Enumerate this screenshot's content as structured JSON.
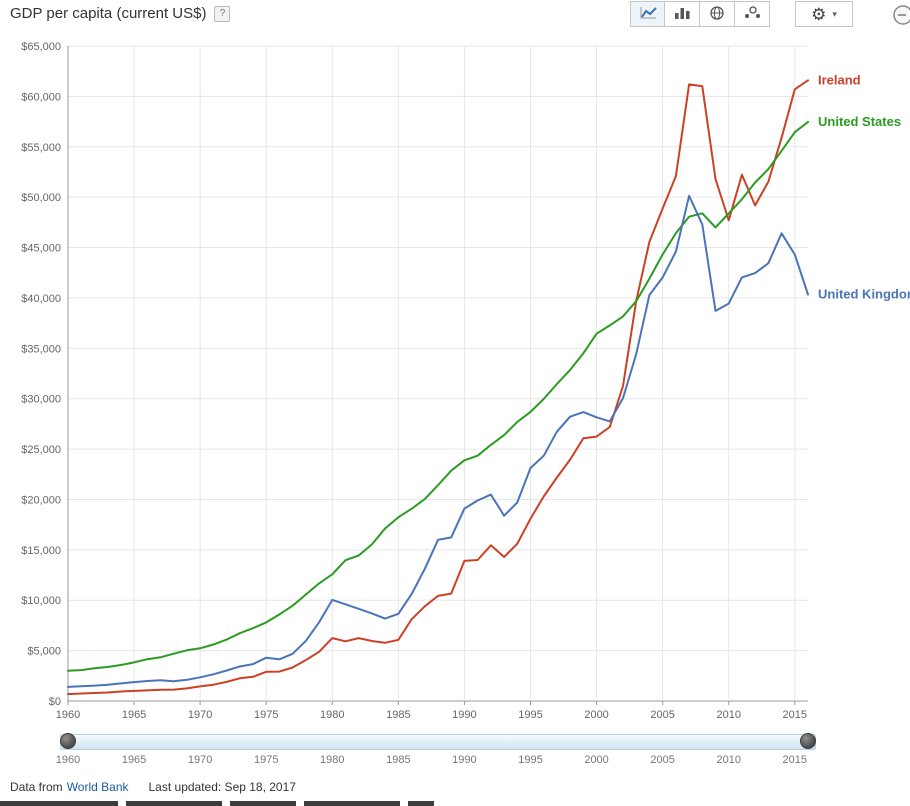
{
  "header": {
    "title": "GDP per capita (current US$)",
    "help": "?",
    "toolbar": {
      "gear": "⚙",
      "caret": "▾",
      "icons": [
        "line-chart",
        "bar-chart",
        "map",
        "bubble-chart",
        "settings",
        "clipped-edge"
      ]
    }
  },
  "chart_data": {
    "type": "line",
    "title": "GDP per capita (current US$)",
    "xlabel": "",
    "ylabel": "",
    "xlim": [
      1960,
      2016
    ],
    "ylim": [
      0,
      65000
    ],
    "y_tick_interval": 5000,
    "grid": true,
    "legend_position": "right-edge-labels",
    "x_ticks": [
      1960,
      1965,
      1970,
      1975,
      1980,
      1985,
      1990,
      1995,
      2000,
      2005,
      2010,
      2015
    ],
    "x": [
      1960,
      1961,
      1962,
      1963,
      1964,
      1965,
      1966,
      1967,
      1968,
      1969,
      1970,
      1971,
      1972,
      1973,
      1974,
      1975,
      1976,
      1977,
      1978,
      1979,
      1980,
      1981,
      1982,
      1983,
      1984,
      1985,
      1986,
      1987,
      1988,
      1989,
      1990,
      1991,
      1992,
      1993,
      1994,
      1995,
      1996,
      1997,
      1998,
      1999,
      2000,
      2001,
      2002,
      2003,
      2004,
      2005,
      2006,
      2007,
      2008,
      2009,
      2010,
      2011,
      2012,
      2013,
      2014,
      2015,
      2016
    ],
    "series": [
      {
        "name": "Ireland",
        "color": "#cc4125",
        "values": [
          686,
          740,
          794,
          847,
          946,
          1003,
          1050,
          1113,
          1131,
          1255,
          1447,
          1622,
          1900,
          2252,
          2400,
          2897,
          2917,
          3329,
          4064,
          4886,
          6240,
          5926,
          6246,
          5957,
          5779,
          6074,
          8104,
          9393,
          10428,
          10658,
          13906,
          13997,
          15454,
          14288,
          15606,
          18095,
          20296,
          22184,
          23957,
          26075,
          26242,
          27198,
          31260,
          39690,
          45556,
          48867,
          52088,
          61190,
          61000,
          51800,
          47700,
          52224,
          49177,
          51545,
          55900,
          60700,
          61600
        ]
      },
      {
        "name": "United States",
        "color": "#2b9b22",
        "values": [
          3007,
          3067,
          3244,
          3375,
          3574,
          3828,
          4146,
          4336,
          4696,
          5032,
          5234,
          5609,
          6094,
          6726,
          7226,
          7801,
          8592,
          9453,
          10565,
          11674,
          12575,
          13976,
          14434,
          15544,
          17121,
          18237,
          19071,
          20039,
          21417,
          22857,
          23889,
          24342,
          25419,
          26387,
          27695,
          28691,
          29968,
          31459,
          32854,
          34514,
          36450,
          37274,
          38166,
          39677,
          41922,
          44308,
          46437,
          48062,
          48401,
          47002,
          48374,
          49791,
          51450,
          52787,
          54599,
          56444,
          57467
        ]
      },
      {
        "name": "United Kingdom",
        "color": "#4a74b8",
        "values": [
          1398,
          1472,
          1525,
          1613,
          1748,
          1874,
          1987,
          2059,
          1952,
          2101,
          2348,
          2650,
          3031,
          3426,
          3666,
          4300,
          4138,
          4682,
          5977,
          7805,
          10032,
          9599,
          9146,
          8691,
          8179,
          8652,
          10611,
          13119,
          15988,
          16239,
          19095,
          19901,
          20487,
          18389,
          19709,
          23123,
          24333,
          26720,
          28214,
          28670,
          28150,
          27745,
          30057,
          34419,
          40290,
          42030,
          44600,
          50134,
          47287,
          38713,
          39436,
          42039,
          42463,
          43445,
          46412,
          44305,
          40341
        ]
      }
    ]
  },
  "slider": {
    "range": [
      1960,
      2016
    ],
    "ticks": [
      1960,
      1965,
      1970,
      1975,
      1980,
      1985,
      1990,
      1995,
      2000,
      2005,
      2010,
      2015
    ]
  },
  "footer": {
    "prefix": "Data from",
    "source_link": "World Bank",
    "updated": "Last updated: Sep 18, 2017"
  }
}
